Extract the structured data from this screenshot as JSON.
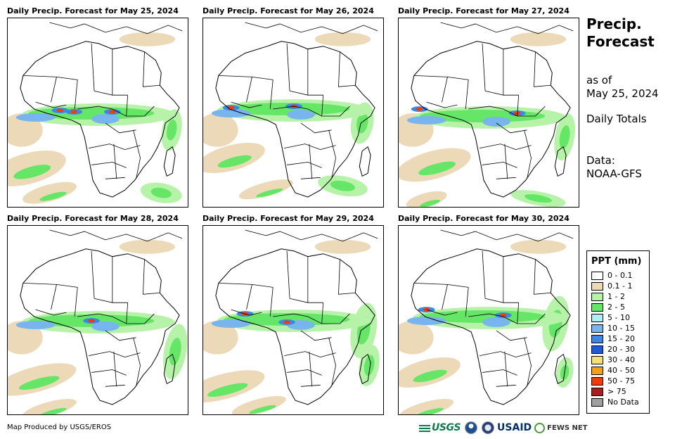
{
  "panels": [
    {
      "title": "Daily Precip. Forecast for May 25, 2024"
    },
    {
      "title": "Daily Precip. Forecast for May 26, 2024"
    },
    {
      "title": "Daily Precip. Forecast for May 27, 2024"
    },
    {
      "title": "Daily Precip. Forecast for May 28, 2024"
    },
    {
      "title": "Daily Precip. Forecast for May 29, 2024"
    },
    {
      "title": "Daily Precip. Forecast for May 30, 2024"
    }
  ],
  "info": {
    "title": "Precip. Forecast",
    "as_of_label": "as of",
    "as_of_date": "May 25, 2024",
    "totals": "Daily Totals",
    "data_label": "Data:",
    "data_source": "NOAA-GFS"
  },
  "legend": {
    "title": "PPT (mm)",
    "items": [
      {
        "label": "0 - 0.1",
        "color": "#ffffff"
      },
      {
        "label": "0.1 - 1",
        "color": "#ecd9b8"
      },
      {
        "label": "1 - 2",
        "color": "#b6f2a8"
      },
      {
        "label": "2 - 5",
        "color": "#66e666"
      },
      {
        "label": "5 - 10",
        "color": "#aef0f5"
      },
      {
        "label": "10 - 15",
        "color": "#78b4ee"
      },
      {
        "label": "15 - 20",
        "color": "#3c88e6"
      },
      {
        "label": "20 - 30",
        "color": "#1e5ad2"
      },
      {
        "label": "30 - 40",
        "color": "#f8e078"
      },
      {
        "label": "40 - 50",
        "color": "#f5a014"
      },
      {
        "label": "50 - 75",
        "color": "#ee3c0a"
      },
      {
        "label": "> 75",
        "color": "#aa1e1e"
      },
      {
        "label": "No Data",
        "color": "#a0a0a0"
      }
    ]
  },
  "credit": "Map Produced by USGS/EROS",
  "logos": {
    "usgs": "USGS",
    "usaid": "USAID",
    "fews": "FEWS NET"
  }
}
